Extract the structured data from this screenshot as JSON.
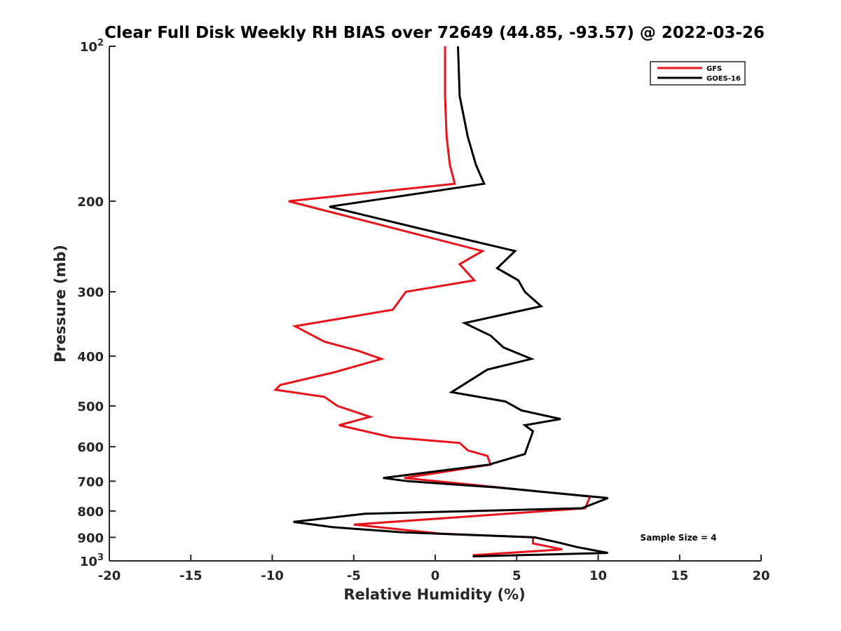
{
  "chart_data": {
    "type": "line",
    "title": "Clear Full Disk Weekly RH BIAS over 72649 (44.85, -93.57) @ 2022-03-26",
    "xlabel": "Relative Humidity (%)",
    "ylabel": "Pressure (mb)",
    "xlim": [
      -20,
      20
    ],
    "ylim": [
      100,
      1000
    ],
    "y_scale": "log",
    "y_reversed": true,
    "x_ticks": [
      -20,
      -15,
      -10,
      -5,
      0,
      5,
      10,
      15,
      20
    ],
    "x_tick_labels": [
      "-20",
      "-15",
      "-10",
      "-5",
      "0",
      "5",
      "10",
      "15",
      "20"
    ],
    "y_ticks": [
      {
        "value": 100,
        "label": "10",
        "sup": "2"
      },
      {
        "value": 200,
        "label": "200",
        "sup": ""
      },
      {
        "value": 300,
        "label": "300",
        "sup": ""
      },
      {
        "value": 400,
        "label": "400",
        "sup": ""
      },
      {
        "value": 500,
        "label": "500",
        "sup": ""
      },
      {
        "value": 600,
        "label": "600",
        "sup": ""
      },
      {
        "value": 700,
        "label": "700",
        "sup": ""
      },
      {
        "value": 800,
        "label": "800",
        "sup": ""
      },
      {
        "value": 900,
        "label": "900",
        "sup": ""
      },
      {
        "value": 1000,
        "label": "10",
        "sup": "3"
      }
    ],
    "grid": false,
    "legend_position": "top-right",
    "annotation": "Sample Size = 4",
    "series": [
      {
        "name": "GFS",
        "color": "#e8141b",
        "points": [
          {
            "x": 0.6,
            "y": 100
          },
          {
            "x": 0.6,
            "y": 125
          },
          {
            "x": 0.7,
            "y": 150
          },
          {
            "x": 0.9,
            "y": 170
          },
          {
            "x": 1.2,
            "y": 185
          },
          {
            "x": -9.0,
            "y": 200
          },
          {
            "x": 2.9,
            "y": 250
          },
          {
            "x": 1.5,
            "y": 265
          },
          {
            "x": 2.4,
            "y": 285
          },
          {
            "x": -1.8,
            "y": 300
          },
          {
            "x": -2.6,
            "y": 325
          },
          {
            "x": -8.6,
            "y": 350
          },
          {
            "x": -6.8,
            "y": 375
          },
          {
            "x": -4.8,
            "y": 390
          },
          {
            "x": -3.3,
            "y": 405
          },
          {
            "x": -6.2,
            "y": 430
          },
          {
            "x": -9.5,
            "y": 455
          },
          {
            "x": -9.8,
            "y": 465
          },
          {
            "x": -6.8,
            "y": 480
          },
          {
            "x": -6.0,
            "y": 500
          },
          {
            "x": -4.0,
            "y": 525
          },
          {
            "x": -5.9,
            "y": 545
          },
          {
            "x": -2.7,
            "y": 575
          },
          {
            "x": 1.5,
            "y": 590
          },
          {
            "x": 2.0,
            "y": 610
          },
          {
            "x": 3.2,
            "y": 625
          },
          {
            "x": 3.4,
            "y": 650
          },
          {
            "x": -1.9,
            "y": 690
          },
          {
            "x": 9.5,
            "y": 750
          },
          {
            "x": 9.2,
            "y": 790
          },
          {
            "x": -5.0,
            "y": 850
          },
          {
            "x": 0.3,
            "y": 885
          },
          {
            "x": 6.0,
            "y": 900
          },
          {
            "x": 6.0,
            "y": 925
          },
          {
            "x": 7.8,
            "y": 950
          },
          {
            "x": 2.3,
            "y": 975
          }
        ]
      },
      {
        "name": "GOES-16",
        "color": "#000000",
        "points": [
          {
            "x": 1.4,
            "y": 100
          },
          {
            "x": 1.5,
            "y": 125
          },
          {
            "x": 2.0,
            "y": 150
          },
          {
            "x": 2.5,
            "y": 170
          },
          {
            "x": 3.0,
            "y": 185
          },
          {
            "x": -6.5,
            "y": 205
          },
          {
            "x": -1.2,
            "y": 225
          },
          {
            "x": 4.9,
            "y": 250
          },
          {
            "x": 3.8,
            "y": 270
          },
          {
            "x": 5.1,
            "y": 285
          },
          {
            "x": 5.5,
            "y": 300
          },
          {
            "x": 6.5,
            "y": 320
          },
          {
            "x": 1.8,
            "y": 345
          },
          {
            "x": 3.4,
            "y": 365
          },
          {
            "x": 4.2,
            "y": 385
          },
          {
            "x": 5.9,
            "y": 405
          },
          {
            "x": 3.2,
            "y": 425
          },
          {
            "x": 1.0,
            "y": 470
          },
          {
            "x": 4.3,
            "y": 490
          },
          {
            "x": 5.3,
            "y": 510
          },
          {
            "x": 7.7,
            "y": 530
          },
          {
            "x": 5.5,
            "y": 545
          },
          {
            "x": 6.0,
            "y": 560
          },
          {
            "x": 5.5,
            "y": 620
          },
          {
            "x": 3.3,
            "y": 650
          },
          {
            "x": -3.2,
            "y": 690
          },
          {
            "x": -1.7,
            "y": 700
          },
          {
            "x": 3.8,
            "y": 720
          },
          {
            "x": 10.6,
            "y": 755
          },
          {
            "x": 9.0,
            "y": 790
          },
          {
            "x": -4.3,
            "y": 810
          },
          {
            "x": -8.7,
            "y": 840
          },
          {
            "x": -6.3,
            "y": 860
          },
          {
            "x": -2.0,
            "y": 880
          },
          {
            "x": 6.1,
            "y": 900
          },
          {
            "x": 7.5,
            "y": 920
          },
          {
            "x": 8.7,
            "y": 940
          },
          {
            "x": 10.6,
            "y": 965
          },
          {
            "x": 2.3,
            "y": 980
          }
        ]
      }
    ]
  }
}
